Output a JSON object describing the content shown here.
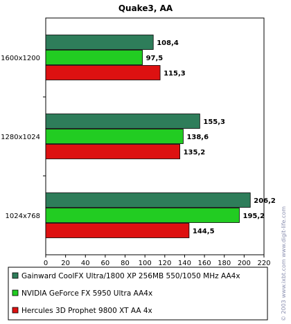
{
  "chart_data": {
    "type": "bar",
    "orientation": "horizontal",
    "title": "Quake3, AA",
    "categories": [
      "1600x1200",
      "1280x1024",
      "1024x768"
    ],
    "series": [
      {
        "name": "Gainward CoolFX Ultra/1800 XP 256MB 550/1050 MHz AA4x",
        "color": "#2e7d5a",
        "values": [
          108.4,
          155.3,
          206.2
        ],
        "labels": [
          "108,4",
          "155,3",
          "206,2"
        ]
      },
      {
        "name": "NVIDIA GeForce FX 5950 Ultra AA4x",
        "color": "#22cc22",
        "values": [
          97.5,
          138.6,
          195.2
        ],
        "labels": [
          "97,5",
          "138,6",
          "195,2"
        ]
      },
      {
        "name": "Hercules 3D Prophet 9800 XT AA 4x",
        "color": "#dd1111",
        "values": [
          115.3,
          135.2,
          144.5
        ],
        "labels": [
          "115,3",
          "135,2",
          "144,5"
        ]
      }
    ],
    "xlim": [
      0,
      220
    ],
    "xticks": [
      "0",
      "20",
      "40",
      "60",
      "80",
      "100",
      "120",
      "140",
      "160",
      "180",
      "200",
      "220"
    ],
    "grid": false,
    "legend_position": "bottom"
  },
  "watermark": "© 2003 www.ixbt.com   www.digit-life.com"
}
